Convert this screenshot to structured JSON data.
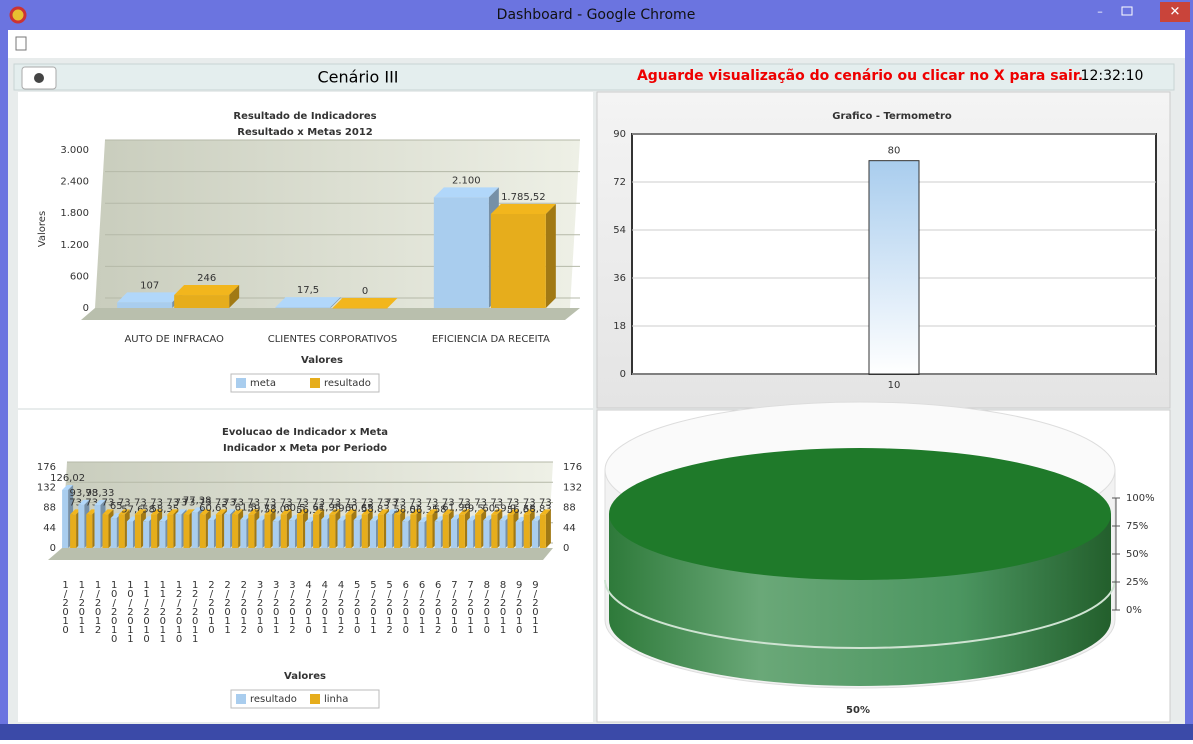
{
  "window": {
    "title": "Dashboard - Google Chrome"
  },
  "header": {
    "title": "Cenário III",
    "message": "Aguarde visualização do cenário ou clicar no X para sair.",
    "time": "12:32:10"
  },
  "chart_data": [
    {
      "type": "bar3d",
      "title": "Resultado de Indicadores",
      "subtitle": "Resultado x Metas 2012",
      "categories": [
        "AUTO DE INFRACAO",
        "CLIENTES CORPORATIVOS",
        "EFICIENCIA DA RECEITA"
      ],
      "series": [
        {
          "name": "meta",
          "color": "#a9cdee",
          "values": [
            107,
            17.5,
            2100
          ],
          "value_labels": [
            "107",
            "17,5",
            "2.100"
          ]
        },
        {
          "name": "resultado",
          "color": "#e6ad1c",
          "values": [
            246,
            0,
            1785.52
          ],
          "value_labels": [
            "246",
            "0",
            "1.785,52"
          ]
        }
      ],
      "ylim": [
        0,
        3000
      ],
      "yticks": [
        0,
        {
          "value": 600,
          "label": "600"
        },
        {
          "value": 1200,
          "label": "1.200"
        },
        {
          "value": 1800,
          "label": "1.800"
        },
        {
          "value": 2400,
          "label": "2.400"
        },
        {
          "value": 3000,
          "label": "3.000"
        }
      ],
      "y_label": "Valores",
      "x_label": "Valores",
      "grid": true
    },
    {
      "type": "thermometer",
      "title": "Grafico - Termometro",
      "categories": [
        "10"
      ],
      "values": [
        80
      ],
      "color": "#a9cdee",
      "ylim": [
        0,
        90
      ],
      "yticks": [
        0,
        18,
        36,
        54,
        72,
        90
      ],
      "grid": true
    },
    {
      "type": "bar3d",
      "title": "Evolucao de Indicador x Meta",
      "subtitle": "Indicador x Meta por Periodo",
      "categories": [
        "1/2010",
        "1/2011",
        "1/2012",
        "10/2010",
        "10/2011",
        "11/2010",
        "11/2011",
        "12/2010",
        "12/2011",
        "2/2010",
        "2/2011",
        "2/2012",
        "3/2010",
        "3/2011",
        "3/2012",
        "4/2010",
        "4/2011",
        "4/2012",
        "5/2010",
        "5/2011",
        "5/2012",
        "6/2010",
        "6/2011",
        "6/2012",
        "7/2010",
        "7/2011",
        "8/2010",
        "8/2011",
        "9/2010",
        "9/2011"
      ],
      "series": [
        {
          "name": "resultado",
          "color": "#a9cdee",
          "values": [
            126.02,
            93.78,
            93.33,
            65,
            57.6,
            58,
            58.35,
            73,
            77.38,
            60.65,
            73,
            61.5,
            59.77,
            58.02,
            60.5,
            56.35,
            61.95,
            59.5,
            60.65,
            58.83,
            73,
            58.02,
            56.35,
            58,
            61.99,
            59.5,
            60,
            59.9,
            56.65,
            58.83
          ],
          "value_labels": [
            "126,02",
            "93,78",
            "93,33",
            "65",
            "57,6",
            "58",
            "58,35",
            "73",
            "77,38",
            "60,65",
            "73",
            "61,5",
            "59,77",
            "58,02",
            "60,5",
            "56,35",
            "61,95",
            "59,5",
            "60,65",
            "58,83",
            "73",
            "58,02",
            "56,35",
            "58",
            "61,99",
            "59,5",
            "60",
            "59,9",
            "56,65",
            "58,83"
          ]
        },
        {
          "name": "linha",
          "color": "#e6ad1c",
          "axis": "y2",
          "values": [
            73,
            73,
            73,
            73,
            73,
            73,
            73,
            73,
            73,
            73,
            73,
            73,
            73,
            73,
            73,
            73,
            73,
            73,
            73,
            73,
            73,
            73,
            73,
            73,
            73,
            73,
            73,
            73,
            73,
            73
          ]
        }
      ],
      "ylim": [
        0,
        176
      ],
      "yticks": [
        0,
        44,
        88,
        132,
        176
      ],
      "y2lim": [
        0,
        176
      ],
      "y2ticks": [
        0,
        44,
        88,
        132,
        176
      ],
      "x_label": "Valores",
      "grid": true
    },
    {
      "type": "gauge",
      "values": [
        50
      ],
      "value_labels": [
        "50%"
      ],
      "color": "#1f7a2a",
      "ylim": [
        0,
        100
      ],
      "yticks": [
        {
          "value": 0,
          "label": "0%"
        },
        {
          "value": 25,
          "label": "25%"
        },
        {
          "value": 50,
          "label": "50%"
        },
        {
          "value": 75,
          "label": "75%"
        },
        {
          "value": 100,
          "label": "100%"
        }
      ]
    }
  ]
}
